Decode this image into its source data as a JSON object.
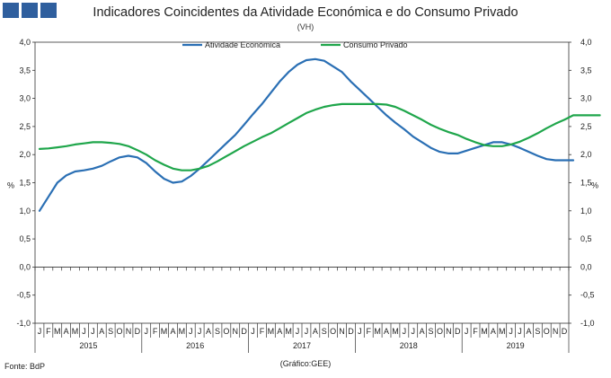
{
  "header": {
    "title": "Indicadores Coincidentes da Atividade Económica e do Consumo Privado",
    "subtitle": "(VH)"
  },
  "footer": {
    "source": "Fonte: BdP",
    "credit": "(Gráfico:GEE)"
  },
  "colors": {
    "logo": "#2f5f9e",
    "atividade": "#2a6fb4",
    "consumo": "#1fa64b",
    "axis": "#333333"
  },
  "chart_data": {
    "type": "line",
    "title": "Indicadores Coincidentes da Atividade Económica e do Consumo Privado",
    "subtitle": "(VH)",
    "ylabel": "%",
    "ylim": [
      -1.0,
      4.0
    ],
    "yticks": [
      "4,0",
      "3,5",
      "3,0",
      "2,5",
      "2,0",
      "1,5",
      "1,0",
      "0,5",
      "0,0",
      "-0,5",
      "-1,0"
    ],
    "month_labels": [
      "J",
      "F",
      "M",
      "A",
      "M",
      "J",
      "J",
      "A",
      "S",
      "O",
      "N",
      "D"
    ],
    "years": [
      "2015",
      "2016",
      "2017",
      "2018",
      "2019"
    ],
    "legend_position": "top",
    "series": [
      {
        "name": "Atividade Económica",
        "color": "#2a6fb4",
        "values": [
          1.0,
          1.25,
          1.5,
          1.63,
          1.7,
          1.72,
          1.75,
          1.8,
          1.88,
          1.95,
          1.98,
          1.95,
          1.85,
          1.7,
          1.57,
          1.5,
          1.52,
          1.62,
          1.75,
          1.9,
          2.05,
          2.2,
          2.35,
          2.53,
          2.72,
          2.9,
          3.1,
          3.3,
          3.47,
          3.6,
          3.68,
          3.7,
          3.67,
          3.57,
          3.47,
          3.3,
          3.15,
          3.0,
          2.85,
          2.7,
          2.57,
          2.45,
          2.32,
          2.22,
          2.12,
          2.05,
          2.02,
          2.02,
          2.07,
          2.12,
          2.17,
          2.22,
          2.22,
          2.18,
          2.12,
          2.05,
          1.98,
          1.92,
          1.9,
          1.9,
          1.9
        ]
      },
      {
        "name": "Consumo Privado",
        "color": "#1fa64b",
        "values": [
          2.1,
          2.11,
          2.13,
          2.15,
          2.18,
          2.2,
          2.22,
          2.22,
          2.21,
          2.19,
          2.15,
          2.08,
          2.0,
          1.9,
          1.82,
          1.75,
          1.72,
          1.72,
          1.75,
          1.8,
          1.88,
          1.97,
          2.06,
          2.15,
          2.23,
          2.31,
          2.38,
          2.47,
          2.56,
          2.65,
          2.74,
          2.8,
          2.85,
          2.88,
          2.9,
          2.9,
          2.9,
          2.9,
          2.9,
          2.89,
          2.85,
          2.78,
          2.7,
          2.62,
          2.53,
          2.46,
          2.4,
          2.35,
          2.28,
          2.22,
          2.17,
          2.15,
          2.15,
          2.18,
          2.23,
          2.3,
          2.38,
          2.47,
          2.55,
          2.62,
          2.7,
          2.7,
          2.7,
          2.7
        ]
      }
    ]
  }
}
